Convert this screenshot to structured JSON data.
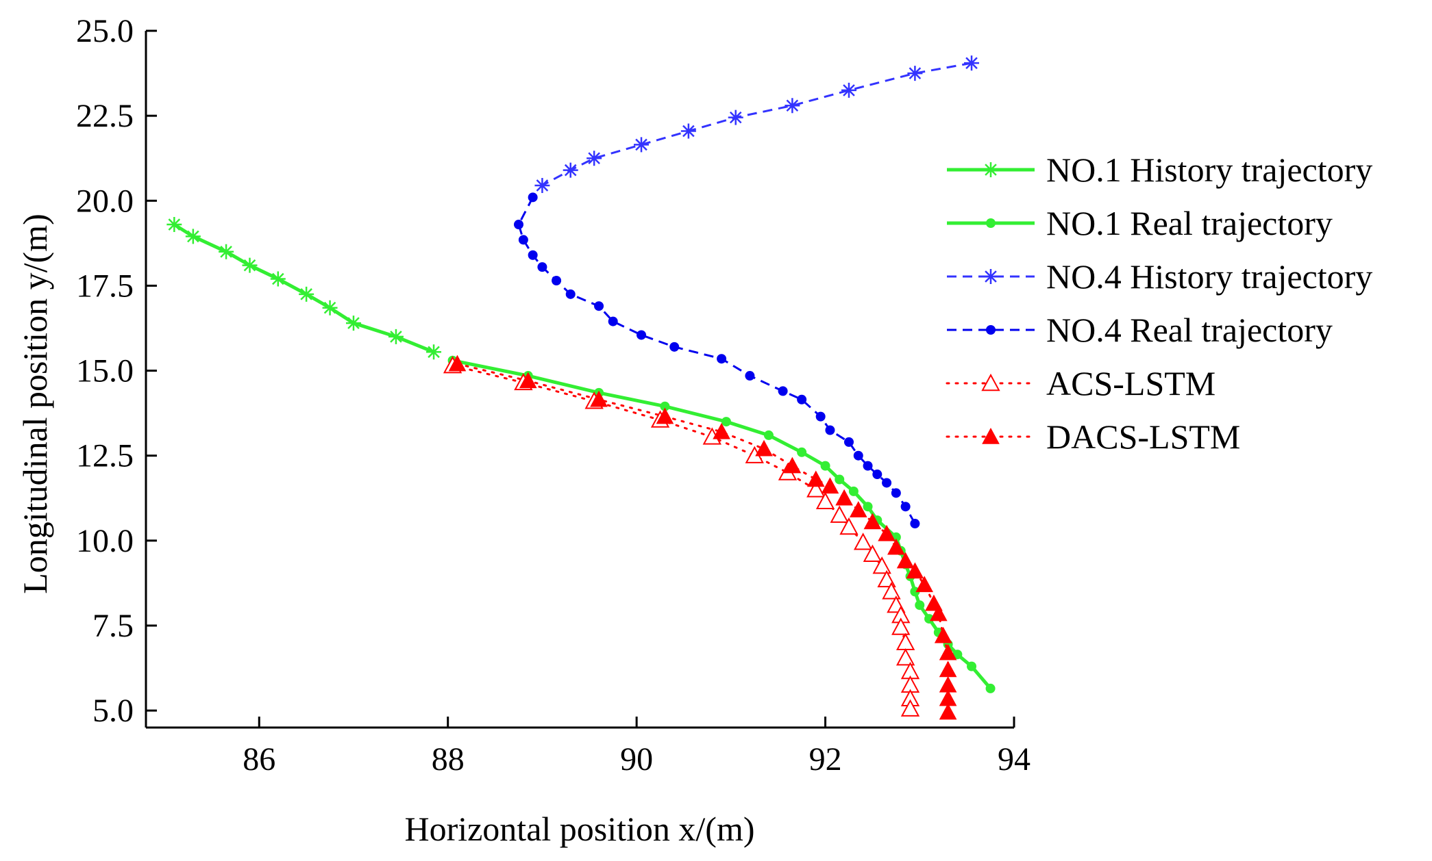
{
  "chart_data": {
    "type": "line",
    "title": "",
    "xlabel": "Horizontal position x/(m)",
    "ylabel": "Longitudinal position y/(m)",
    "xlim": [
      84.8,
      94
    ],
    "ylim": [
      4.5,
      25.0
    ],
    "xticks": [
      86,
      88,
      90,
      92,
      94
    ],
    "yticks": [
      5.0,
      7.5,
      10.0,
      12.5,
      15.0,
      17.5,
      20.0,
      22.5,
      25.0
    ],
    "xtick_labels": [
      "86",
      "88",
      "90",
      "92",
      "94"
    ],
    "ytick_labels": [
      "5.0",
      "7.5",
      "10.0",
      "12.5",
      "15.0",
      "17.5",
      "20.0",
      "22.5",
      "25.0"
    ],
    "legend_position": "right",
    "series": [
      {
        "name": "NO.1 History trajectory",
        "color": "#33ee33",
        "line": "solid",
        "marker": "star",
        "x": [
          85.1,
          85.3,
          85.65,
          85.9,
          86.2,
          86.5,
          86.75,
          87.0,
          87.45,
          87.85
        ],
        "y": [
          19.3,
          18.95,
          18.5,
          18.1,
          17.7,
          17.25,
          16.85,
          16.4,
          16.0,
          15.55
        ]
      },
      {
        "name": "NO.1 Real trajectory",
        "color": "#33ee33",
        "line": "solid",
        "marker": "dot",
        "x": [
          88.05,
          88.85,
          89.6,
          90.3,
          90.95,
          91.4,
          91.75,
          92.0,
          92.15,
          92.3,
          92.45,
          92.55,
          92.75,
          92.8,
          92.85,
          92.9,
          92.95,
          93.0,
          93.1,
          93.2,
          93.3,
          93.4,
          93.55,
          93.75
        ],
        "y": [
          15.3,
          14.85,
          14.35,
          13.95,
          13.5,
          13.1,
          12.6,
          12.2,
          11.8,
          11.45,
          11.0,
          10.6,
          10.1,
          9.7,
          9.3,
          8.95,
          8.5,
          8.1,
          7.7,
          7.3,
          6.95,
          6.65,
          6.3,
          5.65
        ]
      },
      {
        "name": "NO.4 History trajectory",
        "color": "#3333ff",
        "line": "dashed",
        "marker": "star",
        "x": [
          93.55,
          92.95,
          92.25,
          91.65,
          91.05,
          90.55,
          90.05,
          89.55,
          89.3,
          89.0
        ],
        "y": [
          24.05,
          23.75,
          23.25,
          22.8,
          22.45,
          22.05,
          21.65,
          21.25,
          20.9,
          20.45
        ]
      },
      {
        "name": "NO.4 Real trajectory",
        "color": "#0000ee",
        "line": "dashed",
        "marker": "dot",
        "x": [
          88.9,
          88.75,
          88.8,
          88.9,
          89.0,
          89.15,
          89.3,
          89.6,
          89.75,
          90.05,
          90.4,
          90.9,
          91.2,
          91.55,
          91.75,
          91.95,
          92.05,
          92.25,
          92.35,
          92.45,
          92.55,
          92.65,
          92.75,
          92.85,
          92.95
        ],
        "y": [
          20.1,
          19.3,
          18.85,
          18.4,
          18.05,
          17.65,
          17.25,
          16.9,
          16.45,
          16.05,
          15.7,
          15.35,
          14.85,
          14.4,
          14.15,
          13.65,
          13.25,
          12.9,
          12.5,
          12.2,
          11.95,
          11.7,
          11.4,
          11.0,
          10.5
        ]
      },
      {
        "name": "ACS-LSTM",
        "color": "#ff0000",
        "line": "dotted",
        "marker": "triangle-open",
        "x": [
          88.05,
          88.8,
          89.55,
          90.25,
          90.8,
          91.25,
          91.6,
          91.9,
          92.0,
          92.15,
          92.25,
          92.4,
          92.5,
          92.6,
          92.65,
          92.7,
          92.75,
          92.8,
          92.8,
          92.85,
          92.85,
          92.9,
          92.9,
          92.9,
          92.9
        ],
        "y": [
          15.15,
          14.65,
          14.1,
          13.55,
          13.05,
          12.5,
          12.0,
          11.5,
          11.15,
          10.75,
          10.4,
          9.95,
          9.6,
          9.25,
          8.85,
          8.5,
          8.1,
          7.8,
          7.45,
          7.0,
          6.55,
          6.15,
          5.75,
          5.35,
          5.05
        ]
      },
      {
        "name": "DACS-LSTM",
        "color": "#ff0000",
        "line": "dotted",
        "marker": "triangle-filled",
        "x": [
          88.1,
          88.85,
          89.6,
          90.3,
          90.9,
          91.35,
          91.65,
          91.9,
          92.05,
          92.2,
          92.35,
          92.5,
          92.65,
          92.75,
          92.85,
          92.95,
          93.05,
          93.15,
          93.2,
          93.25,
          93.3,
          93.3,
          93.3,
          93.3,
          93.3
        ],
        "y": [
          15.2,
          14.7,
          14.15,
          13.65,
          13.2,
          12.7,
          12.2,
          11.8,
          11.6,
          11.25,
          10.9,
          10.55,
          10.2,
          9.8,
          9.4,
          9.1,
          8.7,
          8.15,
          7.85,
          7.2,
          6.7,
          6.2,
          5.75,
          5.35,
          4.95
        ]
      }
    ]
  }
}
